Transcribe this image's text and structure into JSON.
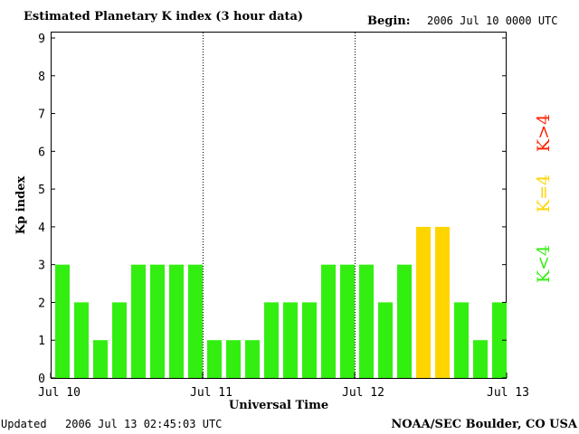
{
  "header": {
    "title": "Estimated Planetary K index (3 hour data)",
    "begin_label": "Begin:",
    "begin_value": "2006 Jul 10 0000 UTC"
  },
  "footer": {
    "updated_label": "Updated",
    "updated_value": "2006 Jul 13 02:45:03 UTC",
    "source": "NOAA/SEC Boulder, CO USA"
  },
  "legend": {
    "low": {
      "label": "K<4",
      "color": "#33ee11"
    },
    "mid": {
      "label": "K=4",
      "color": "#ffd500"
    },
    "high": {
      "label": "K>4",
      "color": "#ff2200"
    }
  },
  "colors": {
    "low": "#33ee11",
    "mid": "#ffd500",
    "high": "#ff2200"
  },
  "chart_data": {
    "type": "bar",
    "title": "Estimated Planetary K index (3 hour data)",
    "xlabel": "Universal Time",
    "ylabel": "Kp index",
    "ylim": [
      0,
      9
    ],
    "y_ticks": [
      "0",
      "1",
      "2",
      "3",
      "4",
      "5",
      "6",
      "7",
      "8",
      "9"
    ],
    "x_ticks": [
      "Jul 10",
      "Jul 11",
      "Jul 12",
      "Jul 13"
    ],
    "day_dividers": [
      "Jul 11",
      "Jul 12"
    ],
    "grid": false,
    "bars_per_day": 8,
    "values": [
      3,
      2,
      1,
      2,
      3,
      3,
      3,
      3,
      1,
      1,
      1,
      2,
      2,
      2,
      3,
      3,
      3,
      2,
      3,
      4,
      4,
      2,
      1,
      2
    ]
  }
}
